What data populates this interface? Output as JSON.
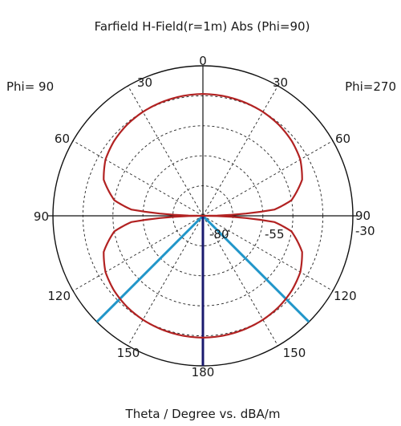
{
  "chart_data": {
    "type": "polar",
    "title": "Farfield H-Field(r=1m) Abs (Phi=90)",
    "xlabel": "Theta / Degree vs. dBA/m",
    "left_half_label": "Phi= 90",
    "right_half_label": "Phi=270",
    "theta_tick_labels": {
      "top": "0",
      "left_30": "30",
      "left_60": "60",
      "left_90": "90",
      "left_120": "120",
      "left_150": "150",
      "right_30": "30",
      "right_60": "60",
      "right_90": "90",
      "right_120": "120",
      "right_150": "150",
      "bottom": "180"
    },
    "radial_tick_labels": [
      "-80",
      "-55",
      "-30"
    ],
    "radial_range_dB": [
      -80,
      -30
    ],
    "grid": true,
    "series": [
      {
        "color": "#b22222",
        "theta_deg": [
          0,
          10,
          20,
          30,
          40,
          50,
          60,
          70,
          80,
          85,
          90,
          95,
          100,
          110,
          120,
          130,
          140,
          150,
          160,
          170,
          180
        ],
        "value_dB": [
          -39.4,
          -39.5,
          -39.7,
          -40.0,
          -40.5,
          -41.3,
          -42.5,
          -44.8,
          -50.0,
          -56.0,
          -80.0,
          -56.0,
          -50.0,
          -44.8,
          -42.5,
          -41.3,
          -40.5,
          -40.0,
          -39.7,
          -39.5,
          -39.4
        ]
      }
    ],
    "annotation_lines": [
      {
        "color": "#2196c9",
        "theta_deg": 135,
        "value_dB": -30
      },
      {
        "color": "#2196c9",
        "theta_deg": 225,
        "value_dB": -30
      },
      {
        "color": "#1a1a6e",
        "theta_deg": 180,
        "value_dB": -30
      }
    ]
  }
}
